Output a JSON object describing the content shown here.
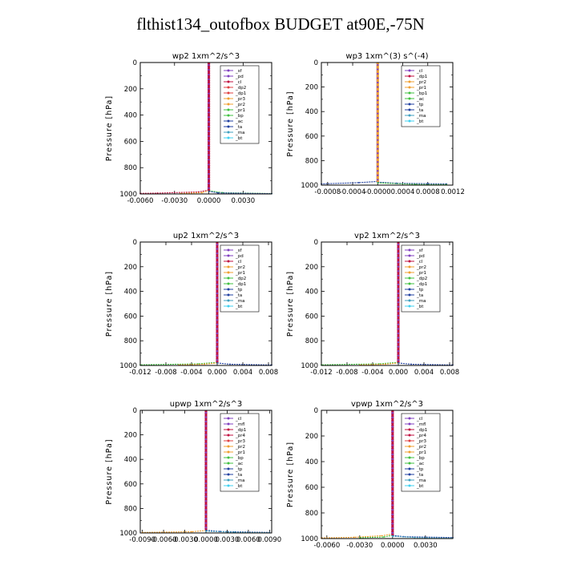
{
  "figure": {
    "title": "flthist134_outofbox  BUDGET at90E,-75N"
  },
  "chart_data": [
    {
      "id": "wp2",
      "type": "line",
      "title": "wp2  1xm^2/s^3",
      "ylabel": "Pressure [hPa]",
      "ylim": [
        1000,
        0
      ],
      "y_inverted": true,
      "yticks": [
        0,
        200,
        400,
        600,
        800,
        1000
      ],
      "yticklabels": [
        "0",
        "200",
        "400",
        "600",
        "800",
        "1000"
      ],
      "xlim": [
        -0.006,
        0.0055
      ],
      "xticks": [
        -0.006,
        -0.003,
        0.0,
        0.003
      ],
      "xticklabels": [
        "-0.0060",
        "-0.0030",
        "0.0000",
        "0.0030"
      ],
      "legend_position": "top-right",
      "series": [
        {
          "name": "_sf",
          "color": "#8040c0"
        },
        {
          "name": "_pd",
          "color": "#8040c0"
        },
        {
          "name": "_cl",
          "color": "#c01040"
        },
        {
          "name": "_dp2",
          "color": "#e04040"
        },
        {
          "name": "_dp1",
          "color": "#e04040"
        },
        {
          "name": "_pr3",
          "color": "#f0a030"
        },
        {
          "name": "_pr2",
          "color": "#f0a030"
        },
        {
          "name": "_pr1",
          "color": "#40c040"
        },
        {
          "name": "_bp",
          "color": "#40c040"
        },
        {
          "name": "_ac",
          "color": "#2040a0"
        },
        {
          "name": "_ta",
          "color": "#2040a0"
        },
        {
          "name": "_ma",
          "color": "#40a0c0"
        },
        {
          "name": "_bt",
          "color": "#40d0f0"
        }
      ],
      "near_surface": [
        {
          "color": "#c01040",
          "points": [
            [
              0.0,
              970
            ],
            [
              -0.0009,
              985
            ],
            [
              -0.0045,
              994
            ],
            [
              -0.006,
              996
            ]
          ]
        },
        {
          "color": "#f0a030",
          "points": [
            [
              0.0,
              975
            ],
            [
              -0.0006,
              990
            ],
            [
              -0.0025,
              997
            ]
          ]
        },
        {
          "color": "#40c040",
          "points": [
            [
              0.0,
              975
            ],
            [
              0.0012,
              990
            ],
            [
              0.0055,
              997
            ]
          ]
        },
        {
          "color": "#2040a0",
          "points": [
            [
              0.0,
              980
            ],
            [
              0.0008,
              992
            ],
            [
              0.0055,
              998
            ]
          ]
        }
      ]
    },
    {
      "id": "wp3",
      "type": "line",
      "title": "wp3  1xm^(3) s^(-4)",
      "ylabel": "Pressure [hPa]",
      "ylim": [
        1000,
        0
      ],
      "y_inverted": true,
      "yticks": [
        0,
        200,
        400,
        600,
        800,
        1000
      ],
      "yticklabels": [
        "0",
        "200",
        "400",
        "600",
        "800",
        "1000"
      ],
      "xlim": [
        -0.0009,
        0.0012
      ],
      "xticks": [
        -0.0008,
        -0.0004,
        0.0,
        0.0004,
        0.0008,
        0.0012
      ],
      "xticklabels": [
        "-0.0008",
        "-0.0004",
        "-0.0000",
        "0.0004",
        "0.0008",
        "0.0012"
      ],
      "legend_position": "top-right",
      "series": [
        {
          "name": "_cl",
          "color": "#8040c0"
        },
        {
          "name": "_dp1",
          "color": "#c01040"
        },
        {
          "name": "_pr2",
          "color": "#f0a030"
        },
        {
          "name": "_pr1",
          "color": "#f0a030"
        },
        {
          "name": "_bp1",
          "color": "#40c040"
        },
        {
          "name": "_ac",
          "color": "#40c040"
        },
        {
          "name": "_tp",
          "color": "#2040a0"
        },
        {
          "name": "_ta",
          "color": "#2040a0"
        },
        {
          "name": "_ma",
          "color": "#40a0c0"
        },
        {
          "name": "_bt",
          "color": "#40d0f0"
        }
      ],
      "near_surface": [
        {
          "color": "#2040a0",
          "points": [
            [
              0.0,
              970
            ],
            [
              -0.0003,
              980
            ],
            [
              -0.0009,
              990
            ]
          ]
        },
        {
          "color": "#2040a0",
          "points": [
            [
              0.0,
              975
            ],
            [
              0.0003,
              985
            ],
            [
              0.0008,
              988
            ],
            [
              0.0011,
              990
            ]
          ]
        },
        {
          "color": "#40c040",
          "points": [
            [
              0.0,
              982
            ],
            [
              0.0006,
              994
            ],
            [
              0.0011,
              996
            ]
          ]
        }
      ]
    },
    {
      "id": "up2",
      "type": "line",
      "title": "up2  1xm^2/s^3",
      "ylabel": "Pressure [hPa]",
      "ylim": [
        1000,
        0
      ],
      "y_inverted": true,
      "yticks": [
        0,
        200,
        400,
        600,
        800,
        1000
      ],
      "yticklabels": [
        "0",
        "200",
        "400",
        "600",
        "800",
        "1000"
      ],
      "xlim": [
        -0.012,
        0.0085
      ],
      "xticks": [
        -0.012,
        -0.008,
        -0.004,
        0.0,
        0.004,
        0.008
      ],
      "xticklabels": [
        "-0.012",
        "-0.008",
        "-0.004",
        "0.000",
        "0.004",
        "0.008"
      ],
      "legend_position": "top-right",
      "series": [
        {
          "name": "_sf",
          "color": "#8040c0"
        },
        {
          "name": "_pd",
          "color": "#8040c0"
        },
        {
          "name": "_cl",
          "color": "#c01040"
        },
        {
          "name": "_pr2",
          "color": "#f0a030"
        },
        {
          "name": "_pr1",
          "color": "#f0a030"
        },
        {
          "name": "_dp2",
          "color": "#40c040"
        },
        {
          "name": "_dp1",
          "color": "#40c040"
        },
        {
          "name": "_tp",
          "color": "#2040a0"
        },
        {
          "name": "_ta",
          "color": "#2040a0"
        },
        {
          "name": "_ma",
          "color": "#40a0c0"
        },
        {
          "name": "_bt",
          "color": "#40d0f0"
        }
      ],
      "near_surface": [
        {
          "color": "#40c040",
          "points": [
            [
              0.0,
              975
            ],
            [
              -0.003,
              987
            ],
            [
              -0.012,
              995
            ]
          ]
        },
        {
          "color": "#f0a030",
          "points": [
            [
              0.0,
              980
            ],
            [
              -0.002,
              990
            ],
            [
              -0.006,
              996
            ]
          ]
        },
        {
          "color": "#2040a0",
          "points": [
            [
              0.0,
              980
            ],
            [
              0.002,
              990
            ],
            [
              0.0085,
              996
            ]
          ]
        }
      ]
    },
    {
      "id": "vp2",
      "type": "line",
      "title": "vp2  1xm^2/s^3",
      "ylabel": "Pressure [hPa]",
      "ylim": [
        1000,
        0
      ],
      "y_inverted": true,
      "yticks": [
        0,
        200,
        400,
        600,
        800,
        1000
      ],
      "yticklabels": [
        "0",
        "200",
        "400",
        "600",
        "800",
        "1000"
      ],
      "xlim": [
        -0.012,
        0.0085
      ],
      "xticks": [
        -0.012,
        -0.008,
        -0.004,
        0.0,
        0.004,
        0.008
      ],
      "xticklabels": [
        "-0.012",
        "-0.008",
        "-0.004",
        "0.000",
        "0.004",
        "0.008"
      ],
      "legend_position": "top-right",
      "series": [
        {
          "name": "_sf",
          "color": "#8040c0"
        },
        {
          "name": "_pd",
          "color": "#8040c0"
        },
        {
          "name": "_cl",
          "color": "#c01040"
        },
        {
          "name": "_pr2",
          "color": "#f0a030"
        },
        {
          "name": "_pr1",
          "color": "#f0a030"
        },
        {
          "name": "_dp2",
          "color": "#40c040"
        },
        {
          "name": "_dp1",
          "color": "#40c040"
        },
        {
          "name": "_tp",
          "color": "#2040a0"
        },
        {
          "name": "_ta",
          "color": "#2040a0"
        },
        {
          "name": "_ma",
          "color": "#40a0c0"
        },
        {
          "name": "_bt",
          "color": "#40d0f0"
        }
      ],
      "near_surface": [
        {
          "color": "#40c040",
          "points": [
            [
              0.0,
              975
            ],
            [
              -0.003,
              987
            ],
            [
              -0.012,
              995
            ]
          ]
        },
        {
          "color": "#f0a030",
          "points": [
            [
              0.0,
              980
            ],
            [
              -0.002,
              990
            ],
            [
              -0.006,
              996
            ]
          ]
        },
        {
          "color": "#2040a0",
          "points": [
            [
              0.0,
              980
            ],
            [
              0.002,
              990
            ],
            [
              0.0085,
              996
            ]
          ]
        }
      ]
    },
    {
      "id": "upwp",
      "type": "line",
      "title": "upwp  1xm^2/s^3",
      "ylabel": "Pressure [hPa]",
      "ylim": [
        1000,
        0
      ],
      "y_inverted": true,
      "yticks": [
        0,
        200,
        400,
        600,
        800,
        1000
      ],
      "yticklabels": [
        "0",
        "200",
        "400",
        "600",
        "800",
        "1000"
      ],
      "xlim": [
        -0.0093,
        0.0093
      ],
      "xticks": [
        -0.009,
        -0.006,
        -0.003,
        0.0,
        0.003,
        0.006,
        0.009
      ],
      "xticklabels": [
        "-0.0090",
        "-0.0060",
        "-0.0030",
        "0.0000",
        "0.0030",
        "0.0060",
        "0.0090"
      ],
      "legend_position": "top-right",
      "series": [
        {
          "name": "_cl",
          "color": "#8040c0"
        },
        {
          "name": "_mfl",
          "color": "#8040c0"
        },
        {
          "name": "_dp1",
          "color": "#c01040"
        },
        {
          "name": "_pr4",
          "color": "#c01040"
        },
        {
          "name": "_pr3",
          "color": "#e04040"
        },
        {
          "name": "_pr2",
          "color": "#f0a030"
        },
        {
          "name": "_pr1",
          "color": "#f0a030"
        },
        {
          "name": "_bp",
          "color": "#40c040"
        },
        {
          "name": "_ac",
          "color": "#40c040"
        },
        {
          "name": "_tp",
          "color": "#2040a0"
        },
        {
          "name": "_ta",
          "color": "#2040a0"
        },
        {
          "name": "_ma",
          "color": "#40a0c0"
        },
        {
          "name": "_bt",
          "color": "#40d0f0"
        }
      ],
      "near_surface": [
        {
          "color": "#f0a030",
          "points": [
            [
              0.0,
              980
            ],
            [
              -0.002,
              990
            ],
            [
              -0.009,
              996
            ]
          ]
        },
        {
          "color": "#2040a0",
          "points": [
            [
              0.0,
              978
            ],
            [
              0.002,
              988
            ],
            [
              0.009,
              996
            ]
          ]
        },
        {
          "color": "#40a0c0",
          "points": [
            [
              0.0,
              985
            ],
            [
              0.004,
              994
            ],
            [
              0.009,
              998
            ]
          ]
        }
      ]
    },
    {
      "id": "vpwp",
      "type": "line",
      "title": "vpwp  1xm^2/s^3",
      "ylabel": "Pressure [hPa]",
      "ylim": [
        1000,
        0
      ],
      "y_inverted": true,
      "yticks": [
        0,
        200,
        400,
        600,
        800,
        1000
      ],
      "yticklabels": [
        "0",
        "200",
        "400",
        "600",
        "800",
        "1000"
      ],
      "xlim": [
        -0.0065,
        0.0055
      ],
      "xticks": [
        -0.006,
        -0.003,
        0.0,
        0.003
      ],
      "xticklabels": [
        "-0.0060",
        "-0.0030",
        "0.0000",
        "0.0030"
      ],
      "legend_position": "top-right",
      "series": [
        {
          "name": "_cl",
          "color": "#8040c0"
        },
        {
          "name": "_mfl",
          "color": "#8040c0"
        },
        {
          "name": "_dp1",
          "color": "#c01040"
        },
        {
          "name": "_pr4",
          "color": "#c01040"
        },
        {
          "name": "_pr3",
          "color": "#e04040"
        },
        {
          "name": "_pr2",
          "color": "#f0a030"
        },
        {
          "name": "_pr1",
          "color": "#f0a030"
        },
        {
          "name": "_bp",
          "color": "#40c040"
        },
        {
          "name": "_ac",
          "color": "#40c040"
        },
        {
          "name": "_tp",
          "color": "#2040a0"
        },
        {
          "name": "_ta",
          "color": "#2040a0"
        },
        {
          "name": "_ma",
          "color": "#40a0c0"
        },
        {
          "name": "_bt",
          "color": "#40d0f0"
        }
      ],
      "near_surface": [
        {
          "color": "#f0a030",
          "points": [
            [
              0.0,
              965
            ],
            [
              -0.001,
              978
            ],
            [
              -0.0035,
              990
            ],
            [
              -0.0065,
              995
            ]
          ]
        },
        {
          "color": "#40c040",
          "points": [
            [
              0.0,
              975
            ],
            [
              -0.0008,
              988
            ],
            [
              -0.003,
              994
            ]
          ]
        },
        {
          "color": "#2040a0",
          "points": [
            [
              0.0,
              975
            ],
            [
              0.001,
              985
            ],
            [
              0.0055,
              992
            ]
          ]
        },
        {
          "color": "#40a0c0",
          "points": [
            [
              0.0,
              982
            ],
            [
              0.002,
              992
            ],
            [
              0.0055,
              997
            ]
          ]
        }
      ]
    }
  ]
}
